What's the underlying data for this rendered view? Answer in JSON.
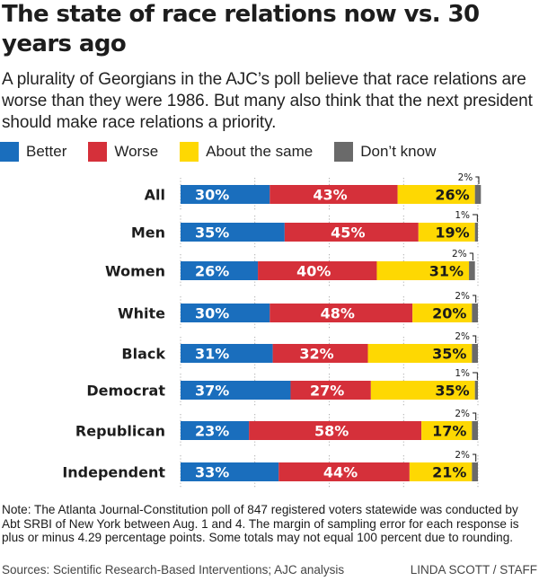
{
  "header": {
    "title": "The state of race relations now vs. 30 years ago",
    "subtitle": "A plurality of Georgians in the AJC’s poll believe that race relations are worse than they were 1986. But many also think that the next president should make race relations a priority."
  },
  "legend": [
    {
      "label": "Better",
      "color": "#1a6ebd"
    },
    {
      "label": "Worse",
      "color": "#d5303a"
    },
    {
      "label": "About the same",
      "color": "#fed802"
    },
    {
      "label": "Don’t know",
      "color": "#6a6a6a"
    }
  ],
  "chart_data": {
    "type": "bar",
    "orientation": "horizontal",
    "stacked": true,
    "title": "The state of race relations now vs. 30 years ago",
    "xlabel": "",
    "ylabel": "",
    "xlim": [
      0,
      100
    ],
    "grid": true,
    "gridlines": [
      0,
      25,
      50,
      75,
      100
    ],
    "legend_position": "top-left",
    "categories": [
      "All",
      "Men",
      "Women",
      "White",
      "Black",
      "Democrat",
      "Republican",
      "Independent"
    ],
    "series": [
      {
        "name": "Better",
        "color": "#1a6ebd",
        "label_color": "#ffffff",
        "values": [
          30,
          35,
          26,
          30,
          31,
          37,
          23,
          33
        ]
      },
      {
        "name": "Worse",
        "color": "#d5303a",
        "label_color": "#ffffff",
        "values": [
          43,
          45,
          40,
          48,
          32,
          27,
          58,
          44
        ]
      },
      {
        "name": "About the same",
        "color": "#fed802",
        "label_color": "#1a1a1a",
        "values": [
          26,
          19,
          31,
          20,
          35,
          35,
          17,
          21
        ]
      },
      {
        "name": "Don’t know",
        "color": "#6a6a6a",
        "label_color": "#1a1a1a",
        "values": [
          2,
          1,
          2,
          2,
          2,
          1,
          2,
          2
        ]
      }
    ],
    "value_suffix": "%"
  },
  "footer": {
    "note": "Note: The Atlanta Journal-Constitution poll of 847 registered voters statewide was conducted by Abt SRBI of New York between Aug. 1 and 4. The margin of sampling error for each response is plus or minus 4.29 percentage points. Some totals may not equal 100 percent due to rounding.",
    "sources": "Sources: Scientific Research-Based Interventions; AJC analysis",
    "credit": "LINDA SCOTT / STAFF"
  }
}
